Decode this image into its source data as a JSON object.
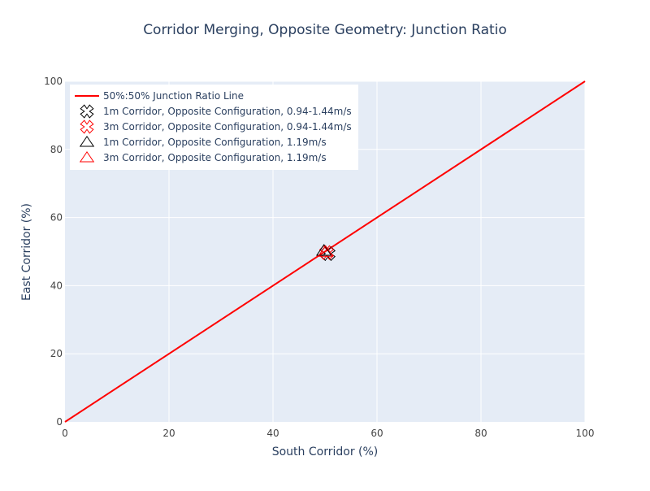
{
  "chart_data": {
    "type": "scatter",
    "title": "Corridor Merging, Opposite Geometry: Junction Ratio",
    "xlabel": "South Corridor (%)",
    "ylabel": "East Corridor (%)",
    "xlim": [
      0,
      100
    ],
    "ylim": [
      0,
      100
    ],
    "x_ticks": [
      0,
      20,
      40,
      60,
      80,
      100
    ],
    "y_ticks": [
      0,
      20,
      40,
      60,
      80,
      100
    ],
    "grid": true,
    "legend_position": "top-left",
    "series": [
      {
        "name": "50%:50% Junction Ratio Line",
        "mode": "line",
        "color": "#ff0000",
        "x": [
          0,
          100
        ],
        "y": [
          0,
          100
        ]
      },
      {
        "name": "1m Corridor, Opposite Configuration, 0.94-1.44m/s",
        "mode": "markers",
        "symbol": "x-open",
        "color": "#000000",
        "x": [
          50.6
        ],
        "y": [
          49.4
        ]
      },
      {
        "name": "3m Corridor, Opposite Configuration, 0.94-1.44m/s",
        "mode": "markers",
        "symbol": "x-open",
        "color": "#ff0000",
        "x": [
          50.3
        ],
        "y": [
          49.7
        ]
      },
      {
        "name": "1m Corridor, Opposite Configuration, 1.19m/s",
        "mode": "markers",
        "symbol": "triangle-open",
        "color": "#000000",
        "x": [
          49.8
        ],
        "y": [
          50.2
        ]
      },
      {
        "name": "3m Corridor, Opposite Configuration, 1.19m/s",
        "mode": "markers",
        "symbol": "triangle-open",
        "color": "#ff0000",
        "x": [
          50.1
        ],
        "y": [
          49.9
        ]
      }
    ]
  },
  "colors": {
    "plot_background": "#e5ecf6",
    "grid": "#ffffff",
    "text": "#2a3f5f",
    "tick_text": "#444444"
  }
}
